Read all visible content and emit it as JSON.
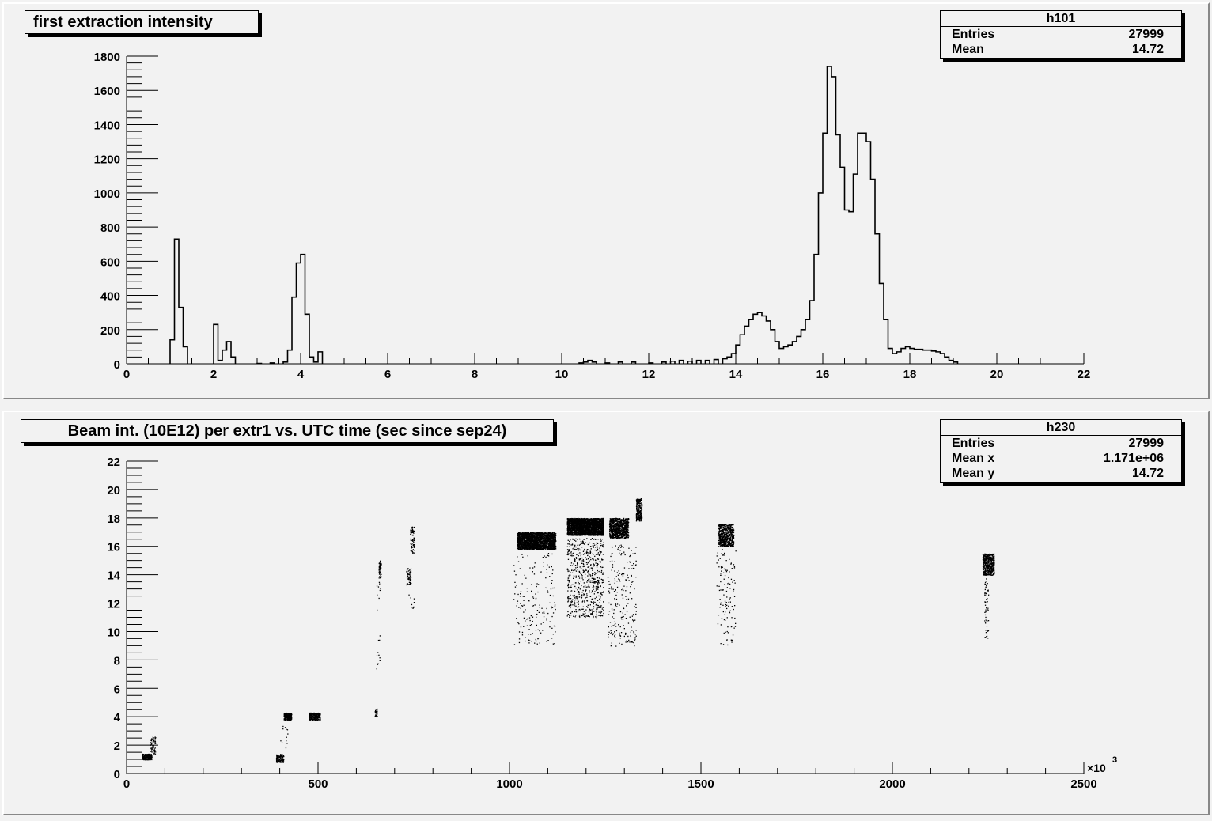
{
  "chart_data": [
    {
      "type": "bar",
      "title": "first extraction intensity",
      "stats": {
        "name": "h101",
        "rows": [
          {
            "label": "Entries",
            "value": "27999"
          },
          {
            "label": "Mean",
            "value": "14.72"
          }
        ]
      },
      "xlim": [
        0,
        22
      ],
      "ylim": [
        0,
        1800
      ],
      "xticks": [
        "0",
        "2",
        "4",
        "6",
        "8",
        "10",
        "12",
        "14",
        "16",
        "18",
        "20",
        "22"
      ],
      "yticks": [
        "0",
        "200",
        "400",
        "600",
        "800",
        "1000",
        "1200",
        "1400",
        "1600",
        "1800"
      ],
      "bin_width": 0.1,
      "bins": [
        [
          1.0,
          140
        ],
        [
          1.1,
          730
        ],
        [
          1.2,
          330
        ],
        [
          1.3,
          100
        ],
        [
          2.0,
          230
        ],
        [
          2.1,
          20
        ],
        [
          2.2,
          80
        ],
        [
          2.3,
          130
        ],
        [
          2.4,
          40
        ],
        [
          3.0,
          2
        ],
        [
          3.3,
          5
        ],
        [
          3.6,
          10
        ],
        [
          3.7,
          80
        ],
        [
          3.8,
          390
        ],
        [
          3.9,
          590
        ],
        [
          4.0,
          640
        ],
        [
          4.1,
          290
        ],
        [
          4.2,
          40
        ],
        [
          4.3,
          10
        ],
        [
          4.4,
          70
        ],
        [
          10.4,
          5
        ],
        [
          10.5,
          10
        ],
        [
          10.6,
          20
        ],
        [
          10.7,
          10
        ],
        [
          11.0,
          5
        ],
        [
          11.3,
          10
        ],
        [
          11.6,
          10
        ],
        [
          12.0,
          5
        ],
        [
          12.3,
          10
        ],
        [
          12.5,
          15
        ],
        [
          12.7,
          20
        ],
        [
          12.9,
          15
        ],
        [
          13.1,
          20
        ],
        [
          13.3,
          20
        ],
        [
          13.5,
          25
        ],
        [
          13.7,
          30
        ],
        [
          13.8,
          40
        ],
        [
          13.9,
          60
        ],
        [
          14.0,
          110
        ],
        [
          14.1,
          170
        ],
        [
          14.2,
          220
        ],
        [
          14.3,
          260
        ],
        [
          14.4,
          290
        ],
        [
          14.5,
          300
        ],
        [
          14.6,
          280
        ],
        [
          14.7,
          250
        ],
        [
          14.8,
          200
        ],
        [
          14.9,
          130
        ],
        [
          15.0,
          90
        ],
        [
          15.1,
          100
        ],
        [
          15.2,
          110
        ],
        [
          15.3,
          130
        ],
        [
          15.4,
          160
        ],
        [
          15.5,
          200
        ],
        [
          15.6,
          260
        ],
        [
          15.7,
          370
        ],
        [
          15.8,
          640
        ],
        [
          15.9,
          1000
        ],
        [
          16.0,
          1350
        ],
        [
          16.1,
          1740
        ],
        [
          16.2,
          1680
        ],
        [
          16.3,
          1340
        ],
        [
          16.4,
          1150
        ],
        [
          16.5,
          900
        ],
        [
          16.6,
          890
        ],
        [
          16.7,
          1110
        ],
        [
          16.8,
          1350
        ],
        [
          16.9,
          1350
        ],
        [
          17.0,
          1300
        ],
        [
          17.1,
          1080
        ],
        [
          17.2,
          760
        ],
        [
          17.3,
          470
        ],
        [
          17.4,
          260
        ],
        [
          17.5,
          90
        ],
        [
          17.6,
          60
        ],
        [
          17.7,
          70
        ],
        [
          17.8,
          90
        ],
        [
          17.9,
          100
        ],
        [
          18.0,
          90
        ],
        [
          18.1,
          85
        ],
        [
          18.2,
          85
        ],
        [
          18.3,
          80
        ],
        [
          18.4,
          80
        ],
        [
          18.5,
          75
        ],
        [
          18.6,
          70
        ],
        [
          18.7,
          60
        ],
        [
          18.8,
          40
        ],
        [
          18.9,
          20
        ],
        [
          19.0,
          10
        ]
      ]
    },
    {
      "type": "scatter",
      "title": "Beam int. (10E12)  per extr1 vs. UTC time (sec since sep24)",
      "stats": {
        "name": "h230",
        "rows": [
          {
            "label": "Entries",
            "value": "27999"
          },
          {
            "label": "Mean x",
            "value": "1.171e+06"
          },
          {
            "label": "Mean y",
            "value": "14.72"
          }
        ]
      },
      "xlim": [
        0,
        2500
      ],
      "ylim": [
        0,
        22
      ],
      "x_multiplier": "×10",
      "x_multiplier_exp": "3",
      "xticks": [
        "0",
        "500",
        "1000",
        "1500",
        "2000",
        "2500"
      ],
      "yticks": [
        "0",
        "2",
        "4",
        "6",
        "8",
        "10",
        "12",
        "14",
        "16",
        "18",
        "20",
        "22"
      ],
      "clusters": [
        {
          "x": [
            40,
            65
          ],
          "y": [
            1.0,
            1.4
          ],
          "n": 260
        },
        {
          "x": [
            60,
            75
          ],
          "y": [
            1.4,
            2.6
          ],
          "n": 60
        },
        {
          "x": [
            390,
            410
          ],
          "y": [
            0.8,
            1.4
          ],
          "n": 120
        },
        {
          "x": [
            410,
            430
          ],
          "y": [
            3.8,
            4.3
          ],
          "n": 260
        },
        {
          "x": [
            400,
            420
          ],
          "y": [
            1.8,
            3.6
          ],
          "n": 12
        },
        {
          "x": [
            475,
            505
          ],
          "y": [
            3.8,
            4.3
          ],
          "n": 260
        },
        {
          "x": [
            648,
            654
          ],
          "y": [
            4.0,
            4.6
          ],
          "n": 40
        },
        {
          "x": [
            658,
            664
          ],
          "y": [
            13.8,
            15.0
          ],
          "n": 60
        },
        {
          "x": [
            652,
            662
          ],
          "y": [
            7.0,
            13.5
          ],
          "n": 20
        },
        {
          "x": [
            730,
            742
          ],
          "y": [
            13.3,
            14.5
          ],
          "n": 60
        },
        {
          "x": [
            740,
            750
          ],
          "y": [
            15.5,
            17.4
          ],
          "n": 80
        },
        {
          "x": [
            735,
            750
          ],
          "y": [
            11.5,
            13.0
          ],
          "n": 10
        },
        {
          "x": [
            1020,
            1120
          ],
          "y": [
            15.8,
            17.0
          ],
          "n": 2200
        },
        {
          "x": [
            1010,
            1120
          ],
          "y": [
            9.0,
            15.6
          ],
          "n": 180
        },
        {
          "x": [
            1150,
            1245
          ],
          "y": [
            16.8,
            18.0
          ],
          "n": 2600
        },
        {
          "x": [
            1150,
            1245
          ],
          "y": [
            11.0,
            16.6
          ],
          "n": 650
        },
        {
          "x": [
            1260,
            1310
          ],
          "y": [
            16.6,
            18.0
          ],
          "n": 900
        },
        {
          "x": [
            1255,
            1330
          ],
          "y": [
            9.0,
            16.2
          ],
          "n": 220
        },
        {
          "x": [
            1330,
            1345
          ],
          "y": [
            17.8,
            19.4
          ],
          "n": 250
        },
        {
          "x": [
            1545,
            1585
          ],
          "y": [
            16.0,
            17.6
          ],
          "n": 600
        },
        {
          "x": [
            1540,
            1590
          ],
          "y": [
            9.0,
            15.8
          ],
          "n": 120
        },
        {
          "x": [
            2235,
            2265
          ],
          "y": [
            14.0,
            15.5
          ],
          "n": 500
        },
        {
          "x": [
            2240,
            2250
          ],
          "y": [
            9.5,
            13.8
          ],
          "n": 60
        }
      ]
    }
  ]
}
